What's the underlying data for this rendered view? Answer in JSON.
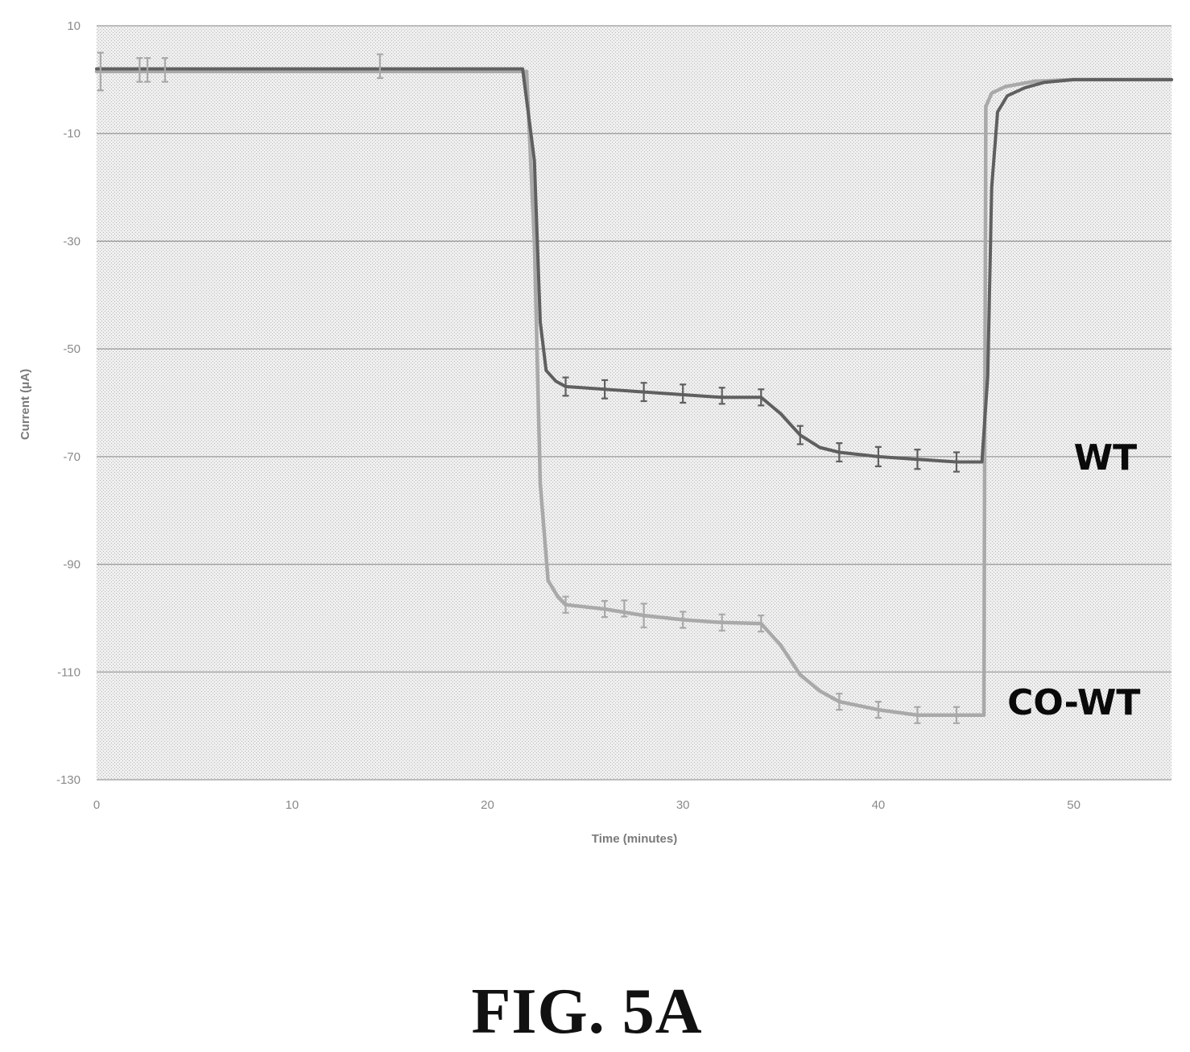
{
  "chart_data": {
    "type": "line",
    "xlabel": "Time (minutes)",
    "ylabel": "Current (μA)",
    "xlim": [
      0,
      55
    ],
    "ylim": [
      -130,
      10
    ],
    "x_ticks": [
      0,
      10,
      20,
      30,
      40,
      50
    ],
    "y_ticks": [
      10,
      -10,
      -30,
      -50,
      -70,
      -90,
      -110,
      -130
    ],
    "y_tick_labels": [
      "10",
      "-10",
      "-30",
      "-50",
      "-70",
      "-90",
      "-110",
      "-130"
    ],
    "grid": "horizontal",
    "colors": {
      "WT": "#5f5f5f",
      "CO-WT": "#a9a9a9",
      "grid": "#9a9a9a",
      "plot_background": "#e9e9e9"
    },
    "series": [
      {
        "name": "WT",
        "label_x": 50,
        "label_y": -70,
        "points": [
          [
            0,
            2
          ],
          [
            21.8,
            2
          ],
          [
            22.4,
            -15
          ],
          [
            22.7,
            -45
          ],
          [
            23,
            -54
          ],
          [
            23.5,
            -56
          ],
          [
            24,
            -57
          ],
          [
            26,
            -57.5
          ],
          [
            28,
            -58
          ],
          [
            30,
            -58.5
          ],
          [
            32,
            -59
          ],
          [
            34,
            -59
          ],
          [
            35,
            -62
          ],
          [
            36,
            -66
          ],
          [
            37,
            -68.3
          ],
          [
            38,
            -69.2
          ],
          [
            40,
            -70
          ],
          [
            42,
            -70.5
          ],
          [
            44,
            -71
          ],
          [
            45.3,
            -71
          ],
          [
            45.6,
            -55
          ],
          [
            45.8,
            -20
          ],
          [
            46.1,
            -6
          ],
          [
            46.6,
            -3
          ],
          [
            47.5,
            -1.5
          ],
          [
            48.5,
            -0.5
          ],
          [
            50,
            0
          ],
          [
            55,
            0
          ]
        ],
        "error_bars": [
          {
            "x": 24,
            "y": -57,
            "err": 1.7
          },
          {
            "x": 26,
            "y": -57.5,
            "err": 1.7
          },
          {
            "x": 28,
            "y": -58,
            "err": 1.7
          },
          {
            "x": 30,
            "y": -58.3,
            "err": 1.7
          },
          {
            "x": 32,
            "y": -58.7,
            "err": 1.5
          },
          {
            "x": 34,
            "y": -59,
            "err": 1.5
          },
          {
            "x": 36,
            "y": -66,
            "err": 1.7
          },
          {
            "x": 38,
            "y": -69.2,
            "err": 1.7
          },
          {
            "x": 40,
            "y": -70,
            "err": 1.8
          },
          {
            "x": 42,
            "y": -70.5,
            "err": 1.8
          },
          {
            "x": 44,
            "y": -71,
            "err": 1.8
          }
        ]
      },
      {
        "name": "CO-WT",
        "label_x": 46.6,
        "label_y": -115.5,
        "points": [
          [
            0,
            1.5
          ],
          [
            22,
            1.5
          ],
          [
            22.4,
            -30
          ],
          [
            22.7,
            -75
          ],
          [
            23.1,
            -93
          ],
          [
            23.6,
            -96
          ],
          [
            24,
            -97.5
          ],
          [
            26,
            -98.3
          ],
          [
            28,
            -99.5
          ],
          [
            30,
            -100.3
          ],
          [
            32,
            -100.8
          ],
          [
            34,
            -101
          ],
          [
            35,
            -105
          ],
          [
            36,
            -110.5
          ],
          [
            37,
            -113.5
          ],
          [
            38,
            -115.5
          ],
          [
            40,
            -117
          ],
          [
            42,
            -118
          ],
          [
            44,
            -118
          ],
          [
            45.4,
            -118
          ],
          [
            45.5,
            -5
          ],
          [
            45.8,
            -2.5
          ],
          [
            46.5,
            -1.3
          ],
          [
            48,
            -0.3
          ],
          [
            50,
            0
          ],
          [
            55,
            0
          ]
        ],
        "error_bars": [
          {
            "x": 24,
            "y": -97.5,
            "err": 1.5
          },
          {
            "x": 26,
            "y": -98.3,
            "err": 1.5
          },
          {
            "x": 27,
            "y": -98.2,
            "err": 1.5
          },
          {
            "x": 28,
            "y": -99.5,
            "err": 2.2
          },
          {
            "x": 30,
            "y": -100.3,
            "err": 1.5
          },
          {
            "x": 32,
            "y": -100.8,
            "err": 1.5
          },
          {
            "x": 34,
            "y": -101,
            "err": 1.5
          },
          {
            "x": 38,
            "y": -115.5,
            "err": 1.5
          },
          {
            "x": 40,
            "y": -117,
            "err": 1.5
          },
          {
            "x": 42,
            "y": -118,
            "err": 1.5
          },
          {
            "x": 44,
            "y": -118,
            "err": 1.5
          },
          {
            "x": 0.2,
            "y": 1.5,
            "err": 3.5
          },
          {
            "x": 2.2,
            "y": 1.8,
            "err": 2.2
          },
          {
            "x": 2.6,
            "y": 1.8,
            "err": 2.2
          },
          {
            "x": 3.5,
            "y": 1.8,
            "err": 2.2
          },
          {
            "x": 14.5,
            "y": 2.5,
            "err": 2.2
          }
        ]
      }
    ]
  },
  "figure": {
    "caption": "FIG. 5A"
  }
}
